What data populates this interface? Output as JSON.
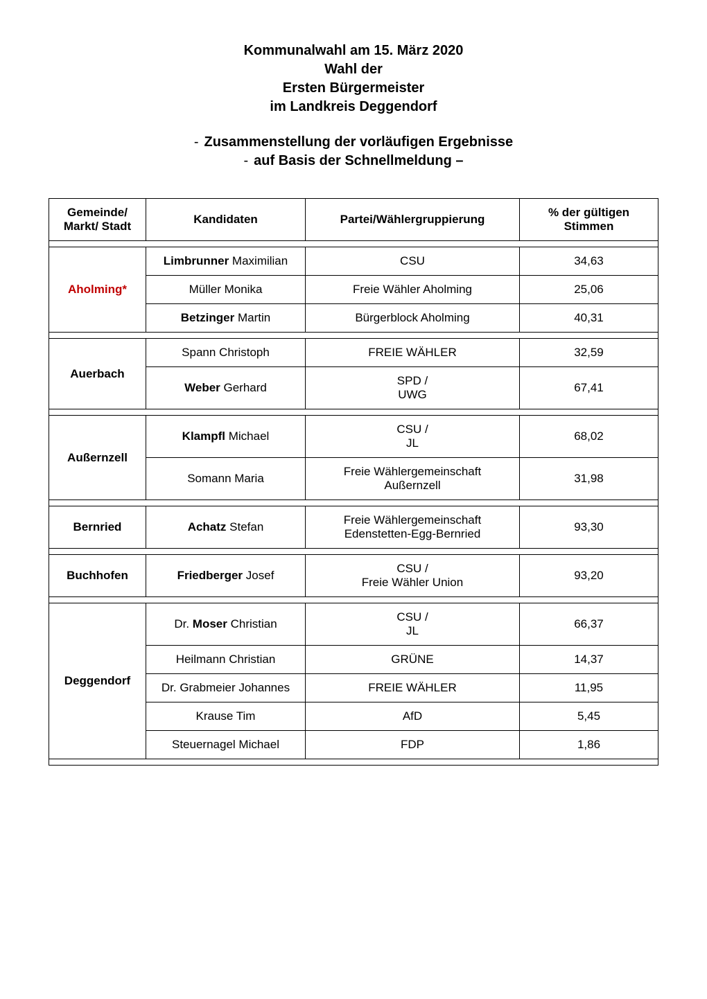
{
  "title": {
    "line1": "Kommunalwahl am 15. März 2020",
    "line2": "Wahl der",
    "line3": "Ersten Bürgermeister",
    "line4": "im Landkreis Deggendorf"
  },
  "subtitle": {
    "line1": "Zusammenstellung der vorläufigen Ergebnisse",
    "line2": "auf Basis der Schnellmeldung –"
  },
  "headers": {
    "gemeinde": "Gemeinde/\nMarkt/ Stadt",
    "kandidaten": "Kandidaten",
    "partei": "Partei/Wählergruppierung",
    "stimmen": "% der gültigen\nStimmen"
  },
  "groups": [
    {
      "gemeinde": "Aholming*",
      "runoff": true,
      "rows": [
        {
          "surname": "Limbrunner",
          "firstname": "Maximilian",
          "bold": true,
          "party": "CSU",
          "pct": "34,63"
        },
        {
          "surname": "Müller",
          "firstname": "Monika",
          "bold": false,
          "party": "Freie Wähler Aholming",
          "pct": "25,06"
        },
        {
          "surname": "Betzinger",
          "firstname": "Martin",
          "bold": true,
          "party": "Bürgerblock Aholming",
          "pct": "40,31"
        }
      ]
    },
    {
      "gemeinde": "Auerbach",
      "runoff": false,
      "rows": [
        {
          "surname": "Spann",
          "firstname": "Christoph",
          "bold": false,
          "party": "FREIE WÄHLER",
          "pct": "32,59"
        },
        {
          "surname": "Weber",
          "firstname": "Gerhard",
          "bold": true,
          "party": "SPD /\nUWG",
          "pct": "67,41"
        }
      ]
    },
    {
      "gemeinde": "Außernzell",
      "runoff": false,
      "rows": [
        {
          "surname": "Klampfl",
          "firstname": "Michael",
          "bold": true,
          "party": "CSU /\nJL",
          "pct": "68,02"
        },
        {
          "surname": "Somann",
          "firstname": "Maria",
          "bold": false,
          "party": "Freie Wählergemeinschaft\nAußernzell",
          "pct": "31,98"
        }
      ]
    },
    {
      "gemeinde": "Bernried",
      "runoff": false,
      "rows": [
        {
          "surname": "Achatz",
          "firstname": "Stefan",
          "bold": true,
          "party": "Freie Wählergemeinschaft\nEdenstetten-Egg-Bernried",
          "pct": "93,30"
        }
      ]
    },
    {
      "gemeinde": "Buchhofen",
      "runoff": false,
      "rows": [
        {
          "surname": "Friedberger",
          "firstname": "Josef",
          "bold": true,
          "party": "CSU /\nFreie Wähler Union",
          "pct": "93,20"
        }
      ]
    },
    {
      "gemeinde": "Deggendorf",
      "runoff": false,
      "rows": [
        {
          "prefix": "Dr.",
          "surname": "Moser",
          "firstname": "Christian",
          "bold": true,
          "party": "CSU /\nJL",
          "pct": "66,37"
        },
        {
          "surname": "Heilmann",
          "firstname": "Christian",
          "bold": false,
          "party": "GRÜNE",
          "pct": "14,37"
        },
        {
          "prefix": "Dr.",
          "surname": "Grabmeier",
          "firstname": "Johannes",
          "bold": false,
          "party": "FREIE WÄHLER",
          "pct": "11,95"
        },
        {
          "surname": "Krause",
          "firstname": "Tim",
          "bold": false,
          "party": "AfD",
          "pct": "5,45"
        },
        {
          "surname": "Steuernagel",
          "firstname": "Michael",
          "bold": false,
          "party": "FDP",
          "pct": "1,86"
        }
      ]
    }
  ]
}
